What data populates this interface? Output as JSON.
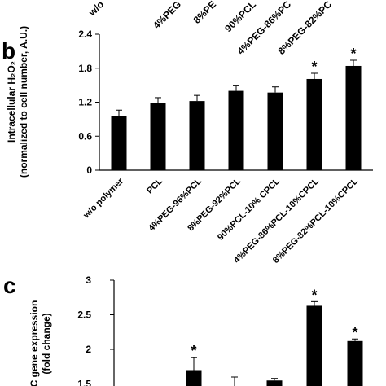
{
  "chart_data": [
    {
      "panel": "a",
      "type": "bar",
      "categories": [
        "w/o polymer",
        "PCL",
        "4%PEG-96%PCL",
        "8%PEG-92%PCL",
        "90%PCL-10% CPCL",
        "4%PEG-86%PCL-10%CPCL",
        "8%PEG-82%PCL-10%CPCL"
      ],
      "visible_tick_fragments": [
        "w/o",
        "4%PEG",
        "8%PE",
        "90%PCL",
        "4%PEG-86%PC",
        "8%PEG-82%PC"
      ]
    },
    {
      "panel": "b",
      "type": "bar",
      "categories": [
        "w/o polymer",
        "PCL",
        "4%PEG-96%PCL",
        "8%PEG-92%PCL",
        "90%PCL-10% CPCL",
        "4%PEG-86%PCL-10%CPCL",
        "8%PEG-82%PCL-10%CPCL"
      ],
      "values": [
        0.96,
        1.18,
        1.22,
        1.4,
        1.37,
        1.61,
        1.84
      ],
      "errors": [
        0.1,
        0.1,
        0.1,
        0.1,
        0.1,
        0.1,
        0.1
      ],
      "significance": [
        "",
        "",
        "",
        "",
        "",
        "*",
        "*"
      ],
      "ylabel_line1": "Intracellular H₂O₂",
      "ylabel_line2": "(normalized to cell number, A.U.)",
      "yticks": [
        "0",
        "0.6",
        "1.2",
        "1.8",
        "2.4"
      ],
      "ylim": [
        0,
        2.4
      ],
      "grid": false,
      "bar_color": "#000000"
    },
    {
      "panel": "c",
      "type": "bar",
      "values": [
        1.2,
        1.7,
        1.33,
        1.55,
        2.63,
        2.12
      ],
      "errors": [
        0.14,
        0.18,
        0.27,
        0.03,
        0.06,
        0.03
      ],
      "significance": [
        "",
        "*",
        "",
        "",
        "*",
        "*"
      ],
      "ylabel_line1": "C gene expression",
      "ylabel_line2": "(fold change)",
      "yticks": [
        "1.5",
        "2",
        "2.5",
        "3"
      ],
      "ylim": [
        1,
        3
      ],
      "bar_color": "#000000"
    }
  ],
  "panel_labels": {
    "b": "b",
    "c": "c"
  }
}
